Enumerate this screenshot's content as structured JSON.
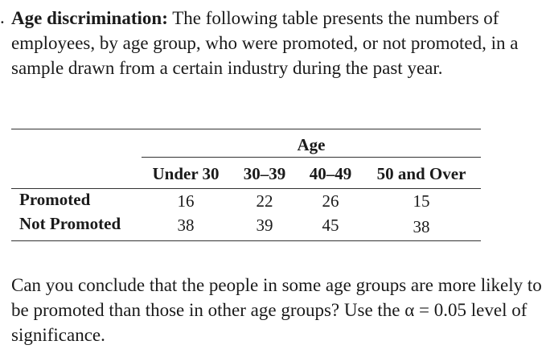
{
  "problem": {
    "bullet": ".",
    "lead": "Age discrimination:",
    "intro_text": " The following table presents the numbers of employees, by age group, who were promoted, or not promoted, in a sample drawn from a certain industry during the past year."
  },
  "table": {
    "spanner": "Age",
    "columns": [
      "Under 30",
      "30–39",
      "40–49",
      "50 and Over"
    ],
    "rows": [
      {
        "label": "Promoted",
        "values": [
          "16",
          "22",
          "26",
          "15"
        ]
      },
      {
        "label": "Not Promoted",
        "values": [
          "38",
          "39",
          "45",
          "38"
        ]
      }
    ]
  },
  "question": {
    "text": "Can you conclude that the people in some age groups are more likely to be promoted than those in other age groups? Use the α = 0.05 level of significance."
  }
}
